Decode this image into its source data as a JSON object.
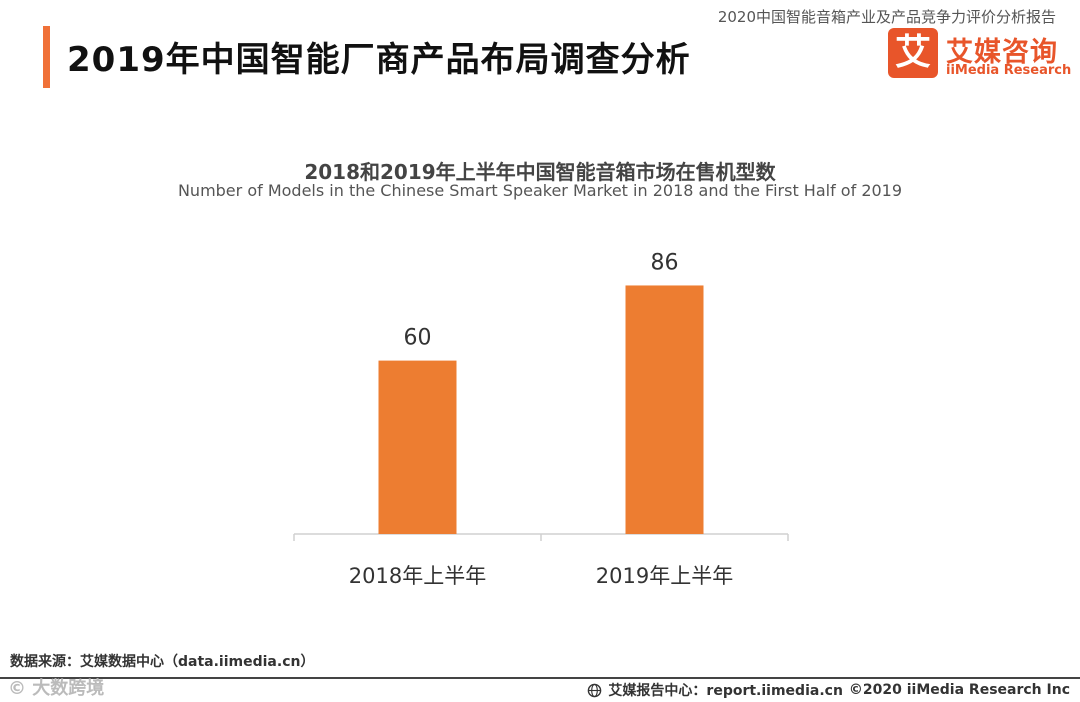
{
  "header": {
    "report_name": "2020中国智能音箱产业及产品竞争力评价分析报告",
    "page_title": "2019年中国智能厂商产品布局调查分析"
  },
  "brand": {
    "icon_char": "艾",
    "name_cn": "艾媒咨询",
    "name_en": "iiMedia Research",
    "color": "#e8552a"
  },
  "accent_color": "#f07138",
  "chart_data": {
    "type": "bar",
    "title": "2018和2019年上半年中国智能音箱市场在售机型数",
    "subtitle": "Number of Models in the Chinese Smart Speaker Market in 2018 and the First Half of 2019",
    "categories": [
      "2018年上半年",
      "2019年上半年"
    ],
    "values": [
      60,
      86
    ],
    "data_labels": [
      "60",
      "86"
    ],
    "ylim": [
      0,
      100
    ],
    "bar_color": "#ed7d31",
    "xlabel": "",
    "ylabel": ""
  },
  "footer": {
    "source": "数据来源：艾媒数据中心（data.iimedia.cn）",
    "watermark": "© 大数跨境",
    "report_center": "艾媒报告中心：report.iimedia.cn",
    "copyright": "©2020  iiMedia Research  Inc"
  }
}
